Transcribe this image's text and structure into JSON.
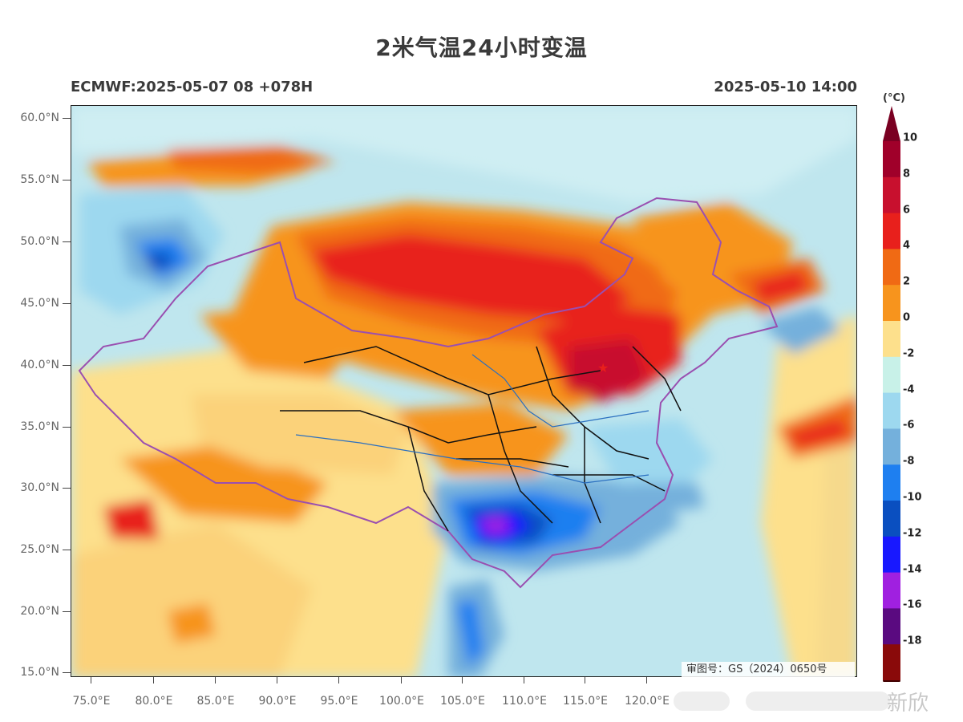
{
  "title": "2米气温24小时变温",
  "subtitle_left": "ECMWF:2025-05-07 08 +078H",
  "subtitle_right": "2025-05-10 14:00",
  "lat_labels": [
    "60.0°N",
    "55.0°N",
    "50.0°N",
    "45.0°N",
    "40.0°N",
    "35.0°N",
    "30.0°N",
    "25.0°N",
    "20.0°N",
    "15.0°N"
  ],
  "lon_labels": [
    "75.0°E",
    "80.0°E",
    "85.0°E",
    "90.0°E",
    "95.0°E",
    "100.0°E",
    "105.0°E",
    "110.0°E",
    "115.0°E",
    "120.0°E"
  ],
  "colorbar": {
    "unit": "(°C)",
    "labels": [
      "10",
      "8",
      "6",
      "4",
      "2",
      "0",
      "-2",
      "-4",
      "-6",
      "-8",
      "-10",
      "-12",
      "-14",
      "-16",
      "-18"
    ],
    "colors": [
      "#a0002a",
      "#c8102e",
      "#e8201c",
      "#f06a14",
      "#f7941d",
      "#fde08c",
      "#c8f1e8",
      "#9dd8ef",
      "#74b0dc",
      "#1e7ff0",
      "#0a4fc0",
      "#1818ff",
      "#a020e0",
      "#5a0a80",
      "#8a0a0a"
    ],
    "top_tip_color": "#7a0022",
    "bottom_tip_color": "#400000"
  },
  "review_number": "审图号：GS（2024）0650号",
  "watermark": "新欣"
}
